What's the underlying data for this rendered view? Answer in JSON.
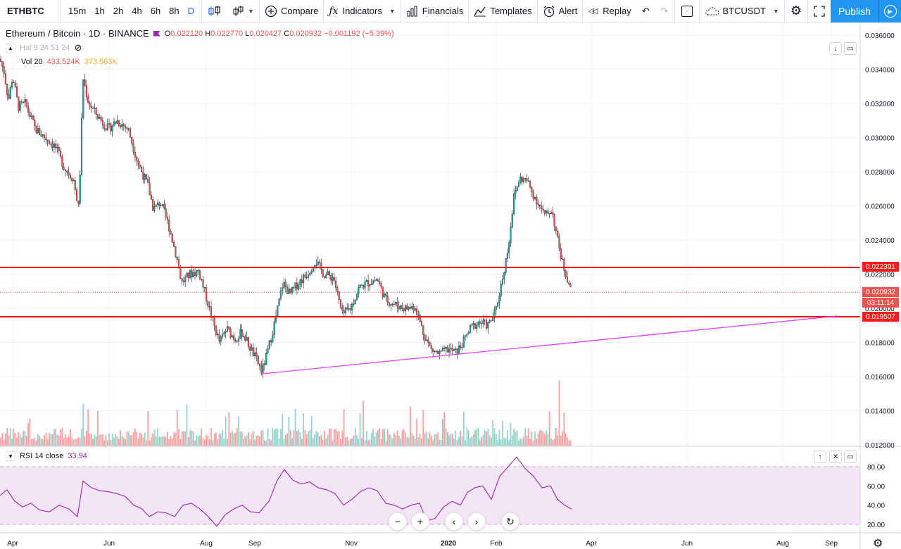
{
  "toolbar": {
    "symbol": "ETHBTC",
    "intervals": [
      {
        "label": "15m",
        "active": false
      },
      {
        "label": "1h",
        "active": false
      },
      {
        "label": "2h",
        "active": false
      },
      {
        "label": "4h",
        "active": false
      },
      {
        "label": "6h",
        "active": false
      },
      {
        "label": "8h",
        "active": false
      },
      {
        "label": "D",
        "active": true
      }
    ],
    "compare": "Compare",
    "indicators": "Indicators",
    "financials": "Financials",
    "templates": "Templates",
    "alert": "Alert",
    "replay": "Replay",
    "compare_symbol": "BTCUSDT",
    "publish": "Publish",
    "icons": [
      "candles-icon",
      "bar-style-icon",
      "plus-circle-icon",
      "fx-icon",
      "financials-icon",
      "templates-icon",
      "alarm-clock-icon",
      "replay-icon",
      "undo-icon",
      "redo-icon",
      "rectangle-icon",
      "cloud-icon",
      "gear-icon",
      "fullscreen-icon",
      "camera-icon"
    ]
  },
  "legend": {
    "title": "Ethereum / Bitcoin · 1D · BINANCE",
    "o_label": "O",
    "o": "0.022120",
    "h_label": "H",
    "h": "0.022770",
    "l_label": "L",
    "l": "0.020427",
    "c_label": "C",
    "c": "0.020932",
    "change": "−0.001192 (−5.39%)"
  },
  "indicators": {
    "hal": "Hal 9 24 51 24",
    "vol_label": "Vol 20",
    "vol_1": "433.524K",
    "vol_2": "373.563K"
  },
  "rsi_legend": {
    "label": "RSI 14 close",
    "value": "33.94"
  },
  "price_tags": {
    "resistance": "0.022391",
    "last": "0.020932",
    "countdown": "03:11:14",
    "support": "0.019507"
  },
  "colors": {
    "up": "#26a69a",
    "down": "#ef5350",
    "level_line": "#ff0000",
    "trendline": "#e040fb",
    "rsi_line": "#9c27b0",
    "rsi_band": "#f3e5f5",
    "accent": "#2196f3"
  },
  "chart_data": {
    "type": "candlestick",
    "symbol": "Ethereum / Bitcoin",
    "interval": "1D",
    "exchange": "BINANCE",
    "y_ticks": [
      "0.036000",
      "0.034000",
      "0.032000",
      "0.030000",
      "0.028000",
      "0.026000",
      "0.024000",
      "0.022000",
      "0.020000",
      "0.018000",
      "0.016000",
      "0.014000",
      "0.012000"
    ],
    "x_ticks": [
      "Apr",
      "Jun",
      "Aug",
      "Sep",
      "Nov",
      "2020",
      "Feb",
      "Apr",
      "Jun",
      "Aug",
      "Sep"
    ],
    "ylim": [
      0.012,
      0.0365
    ],
    "price_path": [
      [
        0,
        0.0346
      ],
      [
        6,
        0.0338
      ],
      [
        12,
        0.0322
      ],
      [
        18,
        0.0336
      ],
      [
        26,
        0.0318
      ],
      [
        36,
        0.032
      ],
      [
        50,
        0.0305
      ],
      [
        64,
        0.03
      ],
      [
        78,
        0.0295
      ],
      [
        92,
        0.0282
      ],
      [
        104,
        0.0276
      ],
      [
        112,
        0.0258
      ],
      [
        118,
        0.0335
      ],
      [
        126,
        0.032
      ],
      [
        140,
        0.0312
      ],
      [
        154,
        0.0305
      ],
      [
        166,
        0.031
      ],
      [
        182,
        0.0305
      ],
      [
        196,
        0.0285
      ],
      [
        210,
        0.0272
      ],
      [
        218,
        0.0258
      ],
      [
        228,
        0.0262
      ],
      [
        240,
        0.0248
      ],
      [
        252,
        0.0228
      ],
      [
        258,
        0.0215
      ],
      [
        270,
        0.022
      ],
      [
        282,
        0.0222
      ],
      [
        294,
        0.0205
      ],
      [
        304,
        0.019
      ],
      [
        312,
        0.018
      ],
      [
        322,
        0.0188
      ],
      [
        334,
        0.0182
      ],
      [
        344,
        0.0186
      ],
      [
        354,
        0.0178
      ],
      [
        364,
        0.017
      ],
      [
        372,
        0.0163
      ],
      [
        380,
        0.0174
      ],
      [
        392,
        0.0195
      ],
      [
        402,
        0.0215
      ],
      [
        412,
        0.0208
      ],
      [
        424,
        0.0215
      ],
      [
        436,
        0.022
      ],
      [
        448,
        0.0228
      ],
      [
        460,
        0.022
      ],
      [
        474,
        0.0218
      ],
      [
        486,
        0.0196
      ],
      [
        498,
        0.02
      ],
      [
        510,
        0.0212
      ],
      [
        522,
        0.0215
      ],
      [
        536,
        0.0217
      ],
      [
        548,
        0.0205
      ],
      [
        562,
        0.0202
      ],
      [
        576,
        0.02
      ],
      [
        590,
        0.0201
      ],
      [
        602,
        0.0185
      ],
      [
        612,
        0.0176
      ],
      [
        624,
        0.0173
      ],
      [
        636,
        0.0176
      ],
      [
        648,
        0.0174
      ],
      [
        658,
        0.018
      ],
      [
        668,
        0.0188
      ],
      [
        680,
        0.0192
      ],
      [
        694,
        0.019
      ],
      [
        704,
        0.0198
      ],
      [
        714,
        0.0218
      ],
      [
        722,
        0.0236
      ],
      [
        730,
        0.0265
      ],
      [
        738,
        0.0276
      ],
      [
        748,
        0.0275
      ],
      [
        756,
        0.0268
      ],
      [
        764,
        0.0262
      ],
      [
        774,
        0.0254
      ],
      [
        784,
        0.0258
      ],
      [
        792,
        0.024
      ],
      [
        800,
        0.0225
      ],
      [
        808,
        0.0215
      ],
      [
        812,
        0.0209
      ]
    ],
    "horizontal_levels": [
      0.022391,
      0.019507
    ],
    "last_price": 0.020932,
    "trendline": [
      [
        370,
        0.01615
      ],
      [
        1190,
        0.01955
      ]
    ],
    "volume_spikes": [
      [
        118,
        0.55
      ],
      [
        210,
        0.45
      ],
      [
        410,
        0.38
      ],
      [
        486,
        0.2
      ],
      [
        545,
        0.22
      ],
      [
        664,
        0.25
      ],
      [
        726,
        0.3
      ],
      [
        780,
        0.45
      ],
      [
        794,
        0.85
      ]
    ],
    "rsi_path": [
      [
        0,
        50
      ],
      [
        10,
        56
      ],
      [
        20,
        45
      ],
      [
        32,
        38
      ],
      [
        44,
        42
      ],
      [
        56,
        35
      ],
      [
        70,
        33
      ],
      [
        84,
        40
      ],
      [
        98,
        36
      ],
      [
        110,
        28
      ],
      [
        118,
        65
      ],
      [
        130,
        58
      ],
      [
        142,
        55
      ],
      [
        154,
        54
      ],
      [
        166,
        52
      ],
      [
        178,
        49
      ],
      [
        190,
        40
      ],
      [
        202,
        36
      ],
      [
        212,
        28
      ],
      [
        224,
        33
      ],
      [
        236,
        32
      ],
      [
        248,
        28
      ],
      [
        260,
        40
      ],
      [
        272,
        42
      ],
      [
        284,
        36
      ],
      [
        296,
        28
      ],
      [
        308,
        18
      ],
      [
        320,
        30
      ],
      [
        332,
        36
      ],
      [
        344,
        40
      ],
      [
        356,
        33
      ],
      [
        368,
        32
      ],
      [
        382,
        44
      ],
      [
        394,
        66
      ],
      [
        404,
        77
      ],
      [
        416,
        66
      ],
      [
        428,
        62
      ],
      [
        440,
        64
      ],
      [
        452,
        58
      ],
      [
        464,
        56
      ],
      [
        476,
        52
      ],
      [
        488,
        40
      ],
      [
        500,
        46
      ],
      [
        512,
        54
      ],
      [
        524,
        58
      ],
      [
        536,
        55
      ],
      [
        548,
        42
      ],
      [
        560,
        40
      ],
      [
        572,
        36
      ],
      [
        584,
        40
      ],
      [
        596,
        42
      ],
      [
        606,
        24
      ],
      [
        618,
        26
      ],
      [
        630,
        38
      ],
      [
        642,
        44
      ],
      [
        654,
        40
      ],
      [
        664,
        53
      ],
      [
        674,
        58
      ],
      [
        686,
        60
      ],
      [
        698,
        46
      ],
      [
        710,
        70
      ],
      [
        722,
        80
      ],
      [
        734,
        90
      ],
      [
        746,
        78
      ],
      [
        758,
        70
      ],
      [
        770,
        58
      ],
      [
        782,
        60
      ],
      [
        792,
        46
      ],
      [
        802,
        40
      ],
      [
        812,
        36
      ]
    ],
    "rsi_ticks": [
      "80.00",
      "60.00",
      "40.00",
      "20.00"
    ],
    "rsi_range": [
      20,
      80
    ]
  }
}
